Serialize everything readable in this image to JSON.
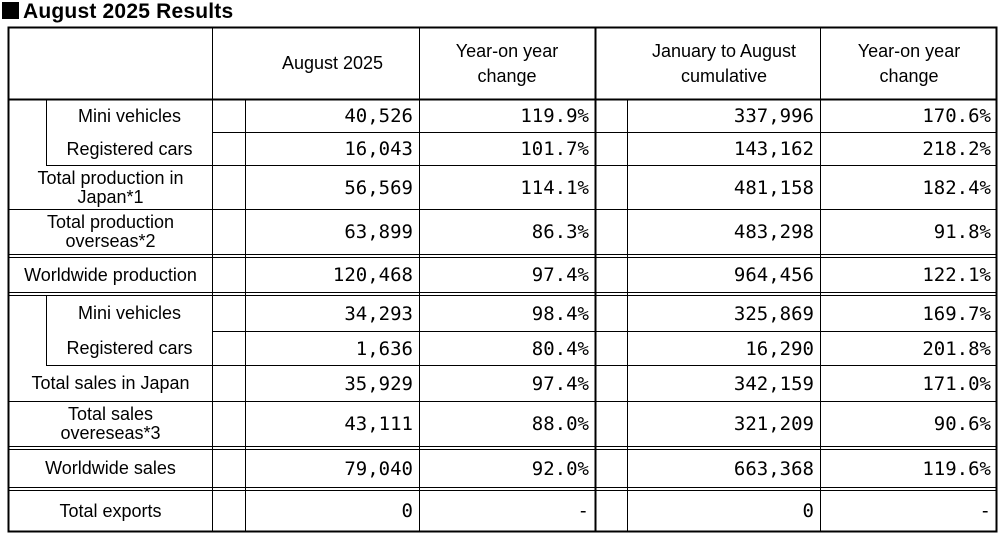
{
  "title": "August 2025 Results",
  "headers": {
    "month": "August 2025",
    "yoy_month": "Year-on year change",
    "cumulative": "January to August cumulative",
    "yoy_cumulative": "Year-on year change"
  },
  "rows": [
    {
      "label": "Mini vehicles",
      "month": "40,526",
      "yoy": "119.9%",
      "cum": "337,996",
      "cum_yoy": "170.6%"
    },
    {
      "label": "Registered cars",
      "month": "16,043",
      "yoy": "101.7%",
      "cum": "143,162",
      "cum_yoy": "218.2%"
    },
    {
      "label": "Total production in Japan*1",
      "month": "56,569",
      "yoy": "114.1%",
      "cum": "481,158",
      "cum_yoy": "182.4%"
    },
    {
      "label": "Total production overseas*2",
      "month": "63,899",
      "yoy": "86.3%",
      "cum": "483,298",
      "cum_yoy": "91.8%"
    },
    {
      "label": "Worldwide production",
      "month": "120,468",
      "yoy": "97.4%",
      "cum": "964,456",
      "cum_yoy": "122.1%"
    },
    {
      "label": "Mini vehicles",
      "month": "34,293",
      "yoy": "98.4%",
      "cum": "325,869",
      "cum_yoy": "169.7%"
    },
    {
      "label": "Registered cars",
      "month": "1,636",
      "yoy": "80.4%",
      "cum": "16,290",
      "cum_yoy": "201.8%"
    },
    {
      "label": "Total sales in Japan",
      "month": "35,929",
      "yoy": "97.4%",
      "cum": "342,159",
      "cum_yoy": "171.0%"
    },
    {
      "label": "Total sales overeseas*3",
      "month": "43,111",
      "yoy": "88.0%",
      "cum": "321,209",
      "cum_yoy": "90.6%"
    },
    {
      "label": "Worldwide sales",
      "month": "79,040",
      "yoy": "92.0%",
      "cum": "663,368",
      "cum_yoy": "119.6%"
    },
    {
      "label": "Total exports",
      "month": "0",
      "yoy": "-",
      "cum": "0",
      "cum_yoy": "-"
    }
  ]
}
